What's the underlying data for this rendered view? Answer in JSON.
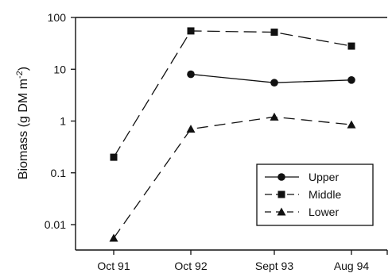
{
  "chart_data": {
    "type": "line",
    "categories": [
      "Oct 91",
      "Oct 92",
      "Sept 93",
      "Aug 94"
    ],
    "ylabel": {
      "prefix": "Biomass (g DM  m",
      "superscript": "-2",
      "suffix": ")"
    },
    "y_scale": "log",
    "ylim": [
      0.01,
      100
    ],
    "y_ticks": [
      {
        "value": 100,
        "label": "100"
      },
      {
        "value": 10,
        "label": "10"
      },
      {
        "value": 1,
        "label": "1"
      },
      {
        "value": 0.1,
        "label": "0.1"
      },
      {
        "value": 0.01,
        "label": "0.01"
      }
    ],
    "grid": false,
    "legend_position": "bottom-right",
    "series": [
      {
        "name": "Upper",
        "marker": "circle",
        "line_style": "solid",
        "values": [
          null,
          8,
          5.5,
          6.2
        ]
      },
      {
        "name": "Middle",
        "marker": "square",
        "line_style": "long-dash",
        "values": [
          0.2,
          55,
          52,
          28
        ]
      },
      {
        "name": "Lower",
        "marker": "triangle",
        "line_style": "medium-dash",
        "values": [
          0.0055,
          0.7,
          1.2,
          0.85
        ]
      }
    ]
  },
  "colors": {
    "ink": "#111111",
    "background": "#ffffff"
  }
}
